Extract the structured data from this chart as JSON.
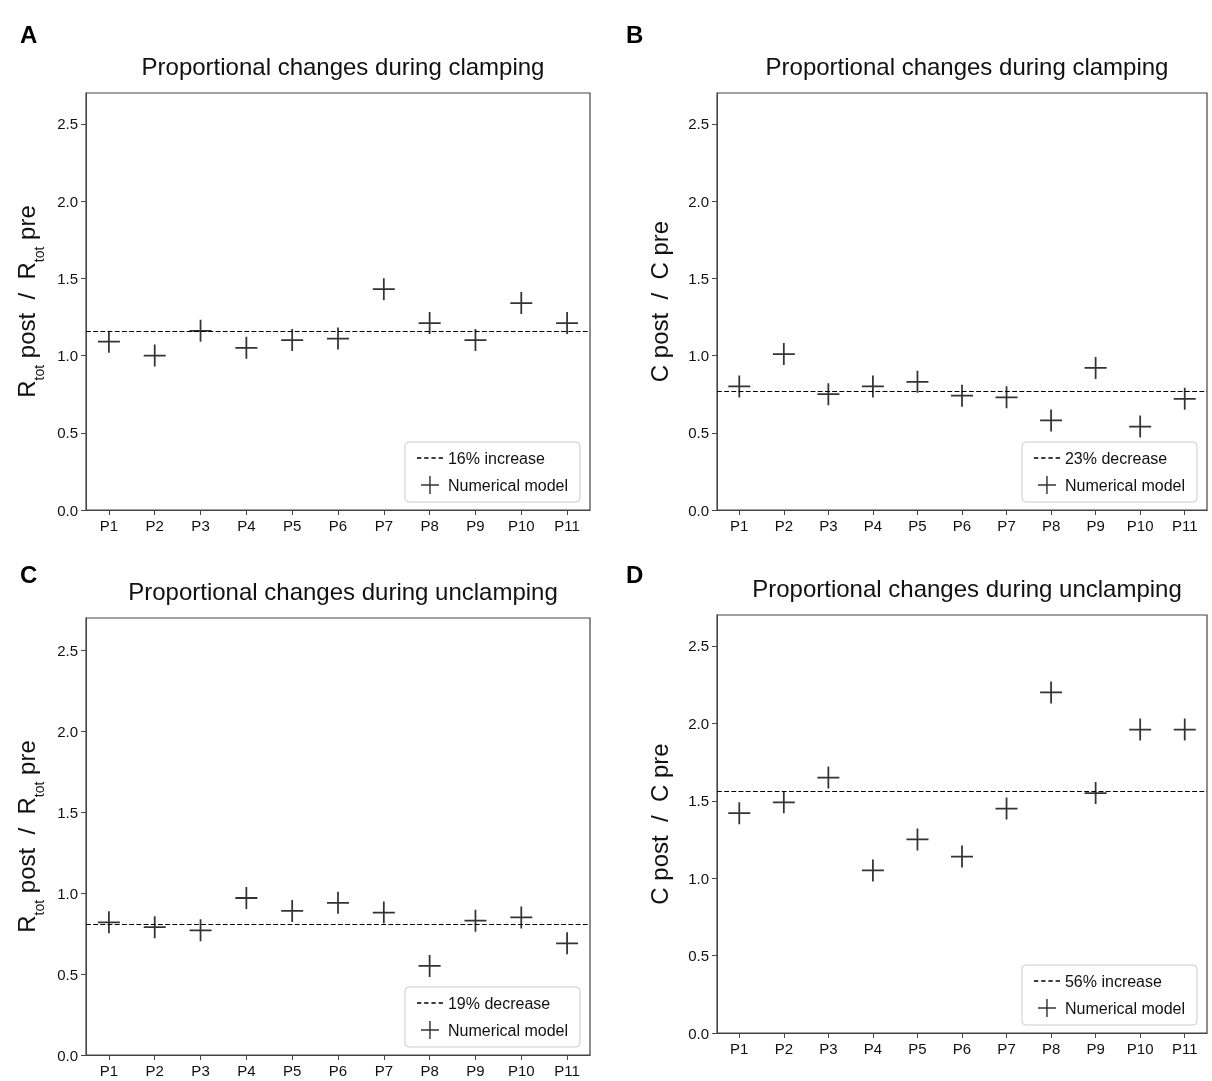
{
  "chart_data": [
    {
      "type": "scatter",
      "title": "Proportional changes during clamping",
      "ylabel": "R$_{tot}$ post  /  R$_{tot}$ pre",
      "annotations": [
        "A"
      ],
      "categories": [
        "P1",
        "P2",
        "P3",
        "P4",
        "P5",
        "P6",
        "P7",
        "P8",
        "P9",
        "P10",
        "P11"
      ],
      "marker": "cross",
      "legend": "bottom right",
      "ylim": [
        0,
        2.7
      ],
      "yticks": [
        {
          "value": 0,
          "label": "0.0"
        },
        0.5,
        {
          "value": 1,
          "label": "1.0"
        },
        1.5,
        {
          "value": 2,
          "label": "2.0"
        },
        2.5
      ],
      "series": [
        {
          "name": "Numerical model",
          "color": "#000000",
          "values": [
            1.09,
            1.0,
            1.16,
            1.05,
            1.1,
            1.11,
            1.43,
            1.21,
            1.1,
            1.34,
            1.21
          ]
        }
      ],
      "ref_lines": [
        {
          "axis": "y",
          "value": 1.16,
          "label": "16% increase",
          "color": "#000000",
          "line_style": "dashed"
        }
      ]
    },
    {
      "type": "scatter",
      "title": "Proportional changes during clamping",
      "ylabel": "C post  /  C pre",
      "annotations": [
        "B"
      ],
      "categories": [
        "P1",
        "P2",
        "P3",
        "P4",
        "P5",
        "P6",
        "P7",
        "P8",
        "P9",
        "P10",
        "P11"
      ],
      "marker": "cross",
      "legend": "bottom right",
      "ylim": [
        0,
        2.7
      ],
      "yticks": [
        {
          "value": 0,
          "label": "0.0"
        },
        0.5,
        {
          "value": 1,
          "label": "1.0"
        },
        1.5,
        {
          "value": 2,
          "label": "2.0"
        },
        2.5
      ],
      "series": [
        {
          "name": "Numerical model",
          "color": "#000000",
          "values": [
            0.8,
            1.01,
            0.75,
            0.8,
            0.83,
            0.74,
            0.73,
            0.58,
            0.92,
            0.54,
            0.72
          ]
        }
      ],
      "ref_lines": [
        {
          "axis": "y",
          "value": 0.77,
          "label": "23% decrease",
          "color": "#000000",
          "line_style": "dashed"
        }
      ]
    },
    {
      "type": "scatter",
      "title": "Proportional changes during unclamping",
      "ylabel": "R$_{tot}$ post  /  R$_{tot}$ pre",
      "annotations": [
        "C"
      ],
      "categories": [
        "P1",
        "P2",
        "P3",
        "P4",
        "P5",
        "P6",
        "P7",
        "P8",
        "P9",
        "P10",
        "P11"
      ],
      "marker": "cross",
      "legend": "bottom right",
      "ylim": [
        0,
        2.7
      ],
      "yticks": [
        {
          "value": 0,
          "label": "0.0"
        },
        0.5,
        {
          "value": 1,
          "label": "1.0"
        },
        1.5,
        {
          "value": 2,
          "label": "2.0"
        },
        2.5
      ],
      "series": [
        {
          "name": "Numerical model",
          "color": "#000000",
          "values": [
            0.82,
            0.79,
            0.77,
            0.97,
            0.89,
            0.94,
            0.88,
            0.55,
            0.83,
            0.85,
            0.69
          ]
        }
      ],
      "ref_lines": [
        {
          "axis": "y",
          "value": 0.81,
          "label": "19% decrease",
          "color": "#000000",
          "line_style": "dashed"
        }
      ]
    },
    {
      "type": "scatter",
      "title": "Proportional changes during unclamping",
      "ylabel": "C post  /  C pre",
      "annotations": [
        "D"
      ],
      "categories": [
        "P1",
        "P2",
        "P3",
        "P4",
        "P5",
        "P6",
        "P7",
        "P8",
        "P9",
        "P10",
        "P11"
      ],
      "marker": "cross",
      "legend": "bottom right",
      "ylim": [
        0,
        2.7
      ],
      "yticks": [
        {
          "value": 0,
          "label": "0.0"
        },
        0.5,
        {
          "value": 1,
          "label": "1.0"
        },
        1.5,
        {
          "value": 2,
          "label": "2.0"
        },
        2.5
      ],
      "series": [
        {
          "name": "Numerical model",
          "color": "#000000",
          "values": [
            1.42,
            1.49,
            1.65,
            1.05,
            1.25,
            1.14,
            1.45,
            2.2,
            1.55,
            1.96,
            1.96
          ]
        }
      ],
      "ref_lines": [
        {
          "axis": "y",
          "value": 1.56,
          "label": "56% increase",
          "color": "#000000",
          "line_style": "dashed"
        }
      ]
    }
  ]
}
